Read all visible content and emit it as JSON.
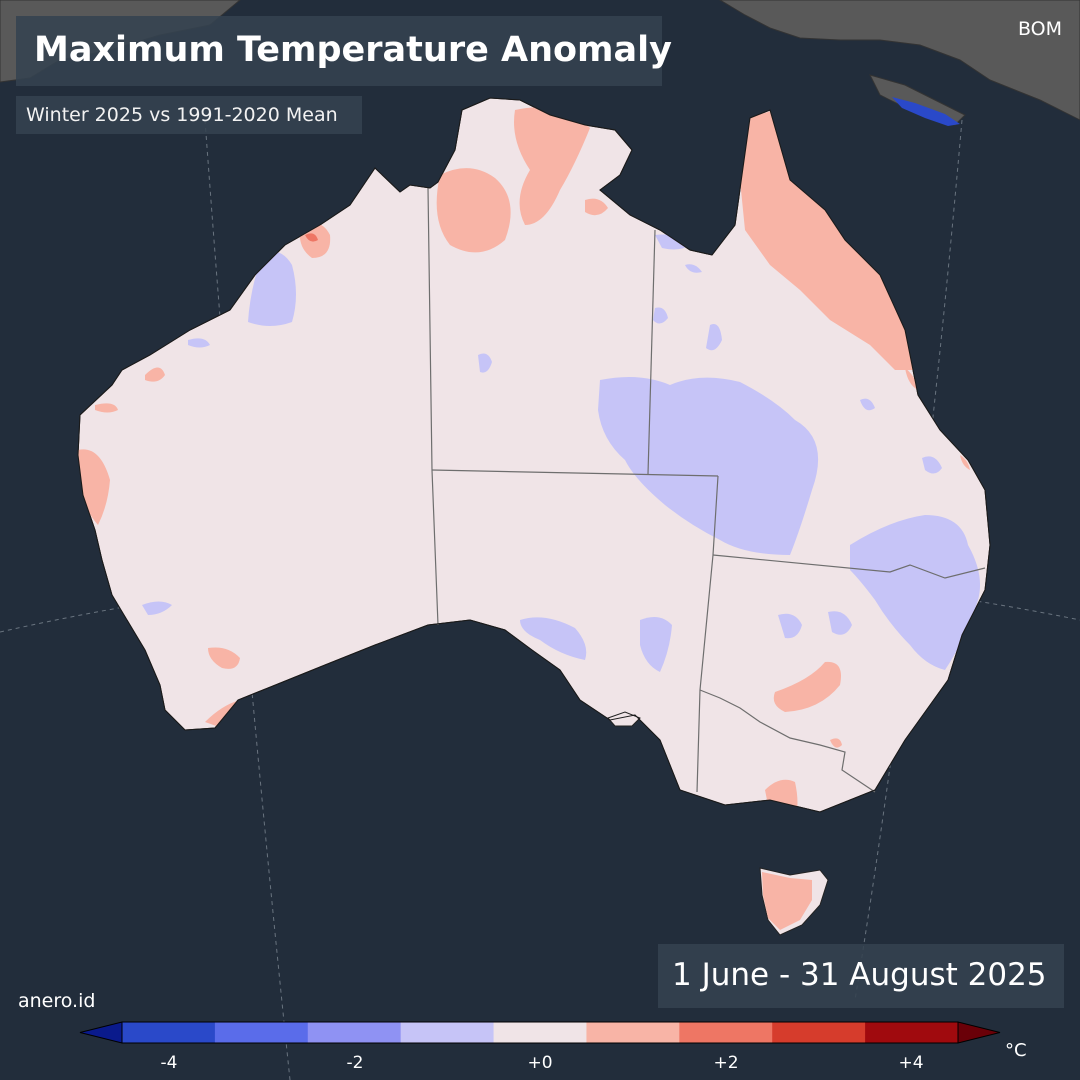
{
  "map": {
    "title": "Maximum Temperature Anomaly",
    "subtitle": "Winter 2025 vs 1991-2020 Mean",
    "date_range": "1 June - 31 August 2025",
    "source": "BOM",
    "credit": "anero.id",
    "region": "Australia",
    "legend": {
      "unit": "°C",
      "bins": [
        {
          "range": "< -4",
          "color": "#0a1a8c"
        },
        {
          "range": "-4 to -3",
          "color": "#2a49c9"
        },
        {
          "range": "-3 to -2",
          "color": "#5a6cea"
        },
        {
          "range": "-2 to -1",
          "color": "#8f92f3"
        },
        {
          "range": "-1 to 0",
          "color": "#c6c4f7"
        },
        {
          "range": "0 to +1",
          "color": "#f0e4e7"
        },
        {
          "range": "+1 to +2",
          "color": "#f8b4a6"
        },
        {
          "range": "+2 to +3",
          "color": "#ee7664"
        },
        {
          "range": "+3 to +4",
          "color": "#d63c2c"
        },
        {
          "range": "+4 to +5",
          "color": "#a00a0e"
        },
        {
          "range": "> +5",
          "color": "#6a0008"
        }
      ],
      "tick_labels": [
        "-4",
        "-2",
        "+0",
        "+2",
        "+4"
      ],
      "tick_values": [
        -4,
        -2,
        0,
        2,
        4
      ],
      "value_range": [
        -5,
        5
      ]
    },
    "colors": {
      "ocean": "#222d3b",
      "foreign_land": "#595959",
      "neutral_anomaly": "#f0e4e7",
      "warm_anomaly": "#f8b4a6",
      "cool_anomaly": "#c6c4f7"
    }
  }
}
